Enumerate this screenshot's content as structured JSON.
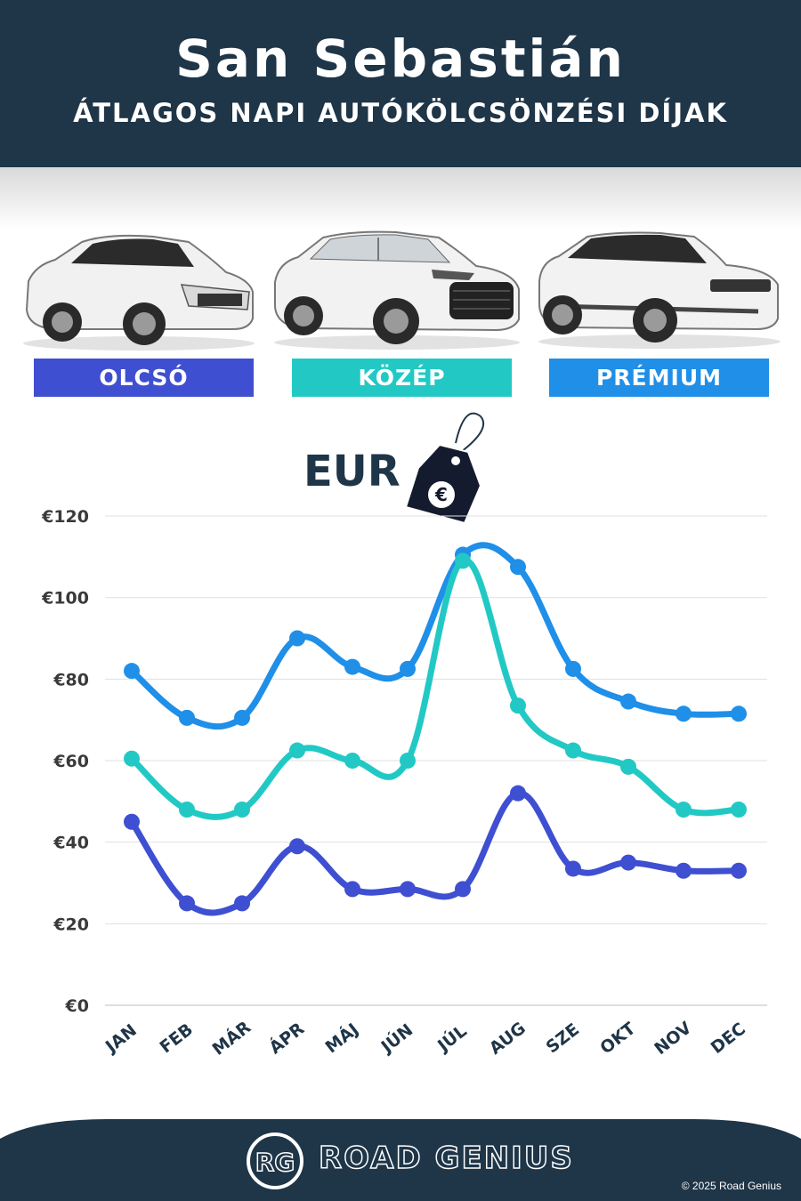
{
  "header": {
    "title": "San Sebastián",
    "subtitle": "ÁTLAGOS NAPI AUTÓKÖLCSÖNZÉSI DÍJAK"
  },
  "categories": [
    {
      "label": "OLCSÓ",
      "color": "#3f4fd1",
      "car_icon": "hatchback-car-icon"
    },
    {
      "label": "KÖZÉP",
      "color": "#22c9c4",
      "car_icon": "suv-car-icon"
    },
    {
      "label": "PRÉMIUM",
      "color": "#1f8fe8",
      "car_icon": "luxury-suv-car-icon"
    }
  ],
  "currency": {
    "label": "EUR",
    "symbol": "€"
  },
  "chart_data": {
    "type": "line",
    "categories": [
      "JAN",
      "FEB",
      "MÁR",
      "ÁPR",
      "MÁJ",
      "JÚN",
      "JÚL",
      "AUG",
      "SZE",
      "OKT",
      "NOV",
      "DEC"
    ],
    "series": [
      {
        "name": "PRÉMIUM",
        "color": "#1f8fe8",
        "values": [
          82,
          70.5,
          70.5,
          90,
          83,
          82.5,
          110.5,
          107.5,
          82.5,
          74.5,
          71.5,
          71.5
        ]
      },
      {
        "name": "KÖZÉP",
        "color": "#22c9c4",
        "values": [
          60.5,
          48,
          48,
          62.5,
          60,
          60,
          109,
          73.5,
          62.5,
          58.5,
          48,
          48
        ]
      },
      {
        "name": "OLCSÓ",
        "color": "#3f4fd1",
        "values": [
          45,
          25,
          25,
          39,
          28.5,
          28.5,
          28.5,
          52,
          33.5,
          35,
          33,
          33
        ]
      }
    ],
    "y_ticks": [
      "€0",
      "€20",
      "€40",
      "€60",
      "€80",
      "€100",
      "€120"
    ],
    "ylim": [
      0,
      120
    ],
    "grid": true,
    "legend": "top"
  },
  "footer": {
    "logo_text": "RG",
    "brand": "ROAD GENIUS",
    "copyright": "© 2025 Road Genius",
    "color": "#1f3548"
  }
}
